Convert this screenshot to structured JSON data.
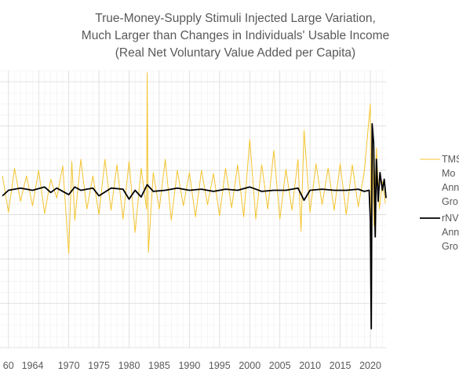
{
  "colors": {
    "tms": "#F4C430",
    "rnvva": "#000000",
    "title": "#595959",
    "grid": "#d9d9d9"
  },
  "chart_data": {
    "type": "line",
    "title": [
      "True-Money-Supply Stimuli Injected Large Variation,",
      "Much Larger than Changes in Individuals' Usable Income",
      "(Real Net Voluntary Value Added per Capita)"
    ],
    "xlabel": "",
    "ylabel": "",
    "x_tick_labels": [
      "60",
      "1964",
      "1970",
      "1975",
      "1980",
      "1985",
      "1990",
      "1995",
      "2000",
      "2005",
      "2010",
      "2015",
      "2020"
    ],
    "x_tick_years": [
      1960,
      1964,
      1970,
      1975,
      1980,
      1985,
      1990,
      1995,
      2000,
      2005,
      2010,
      2015,
      2020
    ],
    "xlim": [
      1958.6,
      2022.6
    ],
    "ylim": [
      -14,
      11
    ],
    "grid": true,
    "legend_position": "right",
    "legend": [
      {
        "series": "tms",
        "lines": [
          "TMS",
          "Mo",
          "Ann",
          "Gro"
        ]
      },
      {
        "series": "rnvva",
        "lines": [
          "rNV",
          "Ann",
          "Gro"
        ]
      }
    ],
    "series": [
      {
        "key": "tms",
        "color": "#F4C430",
        "width": 1.0,
        "x": [
          1959,
          1960,
          1961,
          1962,
          1963,
          1964,
          1965,
          1966,
          1967,
          1968,
          1969,
          1970,
          1970.5,
          1971,
          1972,
          1973,
          1974,
          1975,
          1976,
          1977,
          1978,
          1979,
          1980,
          1981,
          1982,
          1982.9,
          1983,
          1983.2,
          1984,
          1985,
          1986,
          1987,
          1988,
          1989,
          1990,
          1991,
          1992,
          1993,
          1994,
          1995,
          1996,
          1997,
          1998,
          1999,
          2000,
          2001,
          2002,
          2003,
          2004,
          2005,
          2006,
          2007,
          2008,
          2008.5,
          2009,
          2010,
          2011,
          2012,
          2013,
          2014,
          2015,
          2016,
          2017,
          2018,
          2019,
          2020,
          2020.15,
          2020.3,
          2020.6,
          2021,
          2021.5,
          2022,
          2022.5
        ],
        "y": [
          1.5,
          -1.8,
          2.2,
          -0.8,
          1.5,
          -1.2,
          2.0,
          -1.9,
          1.2,
          -0.5,
          2.4,
          -5.5,
          2.8,
          -2.5,
          3.0,
          -1.5,
          1.5,
          -2.0,
          3.0,
          -1.6,
          2.5,
          -2.4,
          2.8,
          -3.6,
          2.2,
          -1.5,
          10.8,
          -5.4,
          1.8,
          -1.5,
          3.0,
          -2.5,
          2.0,
          -1.2,
          1.8,
          -2.2,
          2.0,
          -1.1,
          1.7,
          -2.1,
          2.2,
          -1.4,
          2.5,
          -2.2,
          4.8,
          -2.4,
          2.5,
          -1.5,
          3.8,
          -2.4,
          2.1,
          -1.6,
          3.0,
          -3.5,
          5.6,
          -1.8,
          2.6,
          -1.1,
          2.2,
          -1.6,
          2.6,
          -2.0,
          2.5,
          -1.3,
          1.9,
          8.0,
          -8.5,
          5.0,
          -3.0,
          4.0,
          -1.5,
          1.0,
          -1.0
        ]
      },
      {
        "key": "rnvva",
        "color": "#000000",
        "width": 1.8,
        "x": [
          1959,
          1960,
          1962,
          1964,
          1966,
          1967,
          1968,
          1970,
          1971,
          1972,
          1974,
          1975,
          1977,
          1979,
          1980,
          1981,
          1982,
          1983,
          1984,
          1986,
          1988,
          1990,
          1992,
          1994,
          1996,
          1998,
          2000,
          2002,
          2004,
          2006,
          2008,
          2009,
          2010,
          2012,
          2014,
          2016,
          2018,
          2019,
          2019.8,
          2020.0,
          2020.15,
          2020.3,
          2020.55,
          2020.8,
          2021.0,
          2021.3,
          2021.6,
          2022.0,
          2022.3,
          2022.6
        ],
        "y": [
          -0.3,
          0.2,
          0.4,
          0.2,
          0.5,
          0.0,
          0.4,
          -0.2,
          0.5,
          0.2,
          0.4,
          -0.3,
          0.4,
          0.3,
          -0.6,
          0.2,
          -0.4,
          0.7,
          0.1,
          0.2,
          0.4,
          0.2,
          0.3,
          0.1,
          0.3,
          0.2,
          0.5,
          0.1,
          0.2,
          0.2,
          0.4,
          -0.7,
          0.2,
          0.3,
          0.2,
          0.2,
          0.3,
          0.1,
          0.2,
          -2.5,
          -12.3,
          6.2,
          4.5,
          -4.0,
          3.0,
          -0.8,
          1.8,
          0.2,
          1.2,
          -0.5
        ]
      }
    ]
  }
}
